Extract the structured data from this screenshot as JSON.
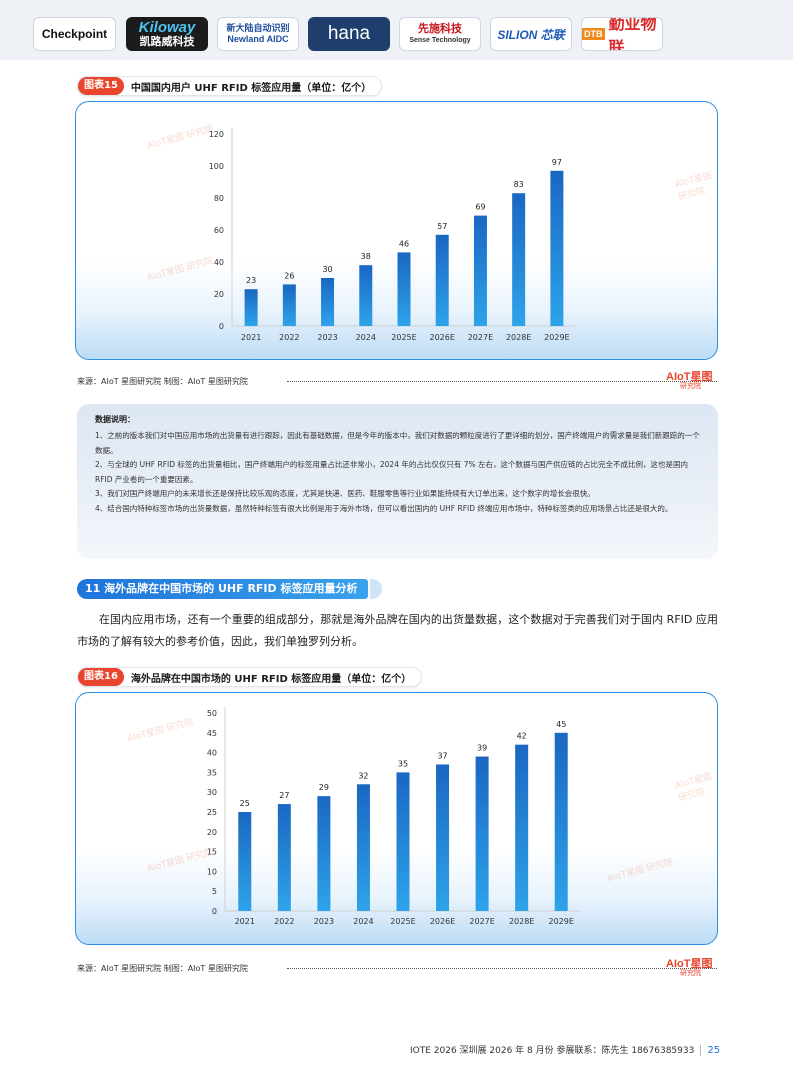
{
  "logos": {
    "checkpoint": "Checkpoint",
    "kiloway_en": "Kiloway",
    "kiloway_cn": "凯路威科技",
    "newland_cn": "新大陆自动识别",
    "newland_en": "Newland AIDC",
    "hana": "hana",
    "sense_cn": "先施科技",
    "sense_en": "Sense Technology",
    "silion": "SILION 芯联",
    "dtb_tag": "DTB",
    "dtb": "勤业物联"
  },
  "fig15": {
    "tag": "图表15",
    "title": "中国国内用户 UHF RFID 标签应用量（单位：亿个）",
    "source": "来源：AIoT 星图研究院    制图：AIoT 星图研究院"
  },
  "fig16": {
    "tag": "图表16",
    "title": "海外品牌在中国市场的 UHF RFID 标签应用量（单位：亿个）",
    "source": "来源：AIoT 星图研究院    制图：AIoT 星图研究院"
  },
  "source_logo": {
    "brand": "AIoT星图",
    "sub": "研究院"
  },
  "watermark": "AIoT星图 研究院",
  "notes": {
    "title": "数据说明：",
    "items": [
      "1、之前的版本我们对中国应用市场的出货量有进行跟踪，因此有基础数据，但是今年的版本中，我们对数据的颗粒度进行了更详细的划分，国产终端用户的需求量是我们新跟踪的一个数据。",
      "2、与全球的 UHF RFID 标签的出货量相比，国产终端用户的标签用量占比还非常小，2024 年的占比仅仅只有 7% 左右，这个数据与国产供应链的占比完全不成比例，这也是国内 RFID 产业卷的一个重要因素。",
      "3、我们对国产终端用户的未来增长还是保持比较乐观的态度，尤其是快递、医药、鞋服零售等行业如果能持续有大订单出来，这个数字的增长会很快。",
      "4、结合国内特种标签市场的出货量数据，虽然特种标签有很大比例是用于海外市场，但可以看出国内的 UHF RFID 终端应用市场中，特种标签类的应用场景占比还是很大的。"
    ]
  },
  "section": {
    "title": "11 海外品牌在中国市场的 UHF RFID 标签应用量分析"
  },
  "paragraph": "在国内应用市场，还有一个重要的组成部分，那就是海外品牌在国内的出货量数据，这个数据对于完善我们对于国内 RFID 应用市场的了解有较大的参考价值，因此，我们单独罗列分析。",
  "footer": {
    "text": "IOTE 2026 深圳展 2026 年 8 月份  参展联系：陈先生 18676385933",
    "page": "25"
  },
  "colors": {
    "bar_top": "#1a67c2",
    "bar_bottom": "#2ea3ea",
    "accent": "#e8452c",
    "border": "#2e8ee0"
  },
  "chart_data": [
    {
      "type": "bar",
      "categories": [
        "2021",
        "2022",
        "2023",
        "2024",
        "2025E",
        "2026E",
        "2027E",
        "2028E",
        "2029E"
      ],
      "values": [
        23,
        26,
        30,
        38,
        46,
        57,
        69,
        83,
        97
      ],
      "ylim": [
        0,
        120
      ],
      "yticks": [
        0,
        20,
        40,
        60,
        80,
        100,
        120
      ],
      "grid": false,
      "data_labels": true
    },
    {
      "type": "bar",
      "categories": [
        "2021",
        "2022",
        "2023",
        "2024",
        "2025E",
        "2026E",
        "2027E",
        "2028E",
        "2029E"
      ],
      "values": [
        25,
        27,
        29,
        32,
        35,
        37,
        39,
        42,
        45
      ],
      "ylim": [
        0,
        50
      ],
      "yticks": [
        0,
        5,
        10,
        15,
        20,
        25,
        30,
        35,
        40,
        45,
        50
      ],
      "grid": false,
      "data_labels": true
    }
  ]
}
